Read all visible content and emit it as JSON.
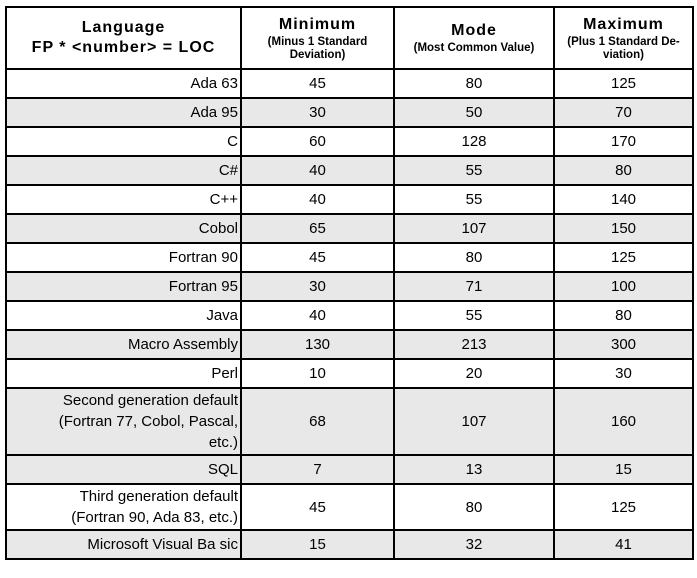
{
  "colors": {
    "border": "#000000",
    "row_shade": "#e8e8e8",
    "background": "#ffffff",
    "text": "#000000"
  },
  "table": {
    "header": {
      "language": {
        "title": "Language",
        "subtitle": "FP * <number> = LOC"
      },
      "minimum": {
        "title": "Minimum",
        "subtitle": [
          "(Minus 1 Standard",
          "Deviation)"
        ]
      },
      "mode": {
        "title": "Mode",
        "subtitle": [
          "(Most Common Value)"
        ]
      },
      "maximum": {
        "title": "Maximum",
        "subtitle": [
          "(Plus 1 Standard De-",
          "viation)"
        ]
      }
    },
    "rows": [
      {
        "language": "Ada 63",
        "minimum": "45",
        "mode": "80",
        "maximum": "125",
        "shaded": false
      },
      {
        "language": "Ada 95",
        "minimum": "30",
        "mode": "50",
        "maximum": "70",
        "shaded": true
      },
      {
        "language": "C",
        "minimum": "60",
        "mode": "128",
        "maximum": "170",
        "shaded": false
      },
      {
        "language": "C#",
        "minimum": "40",
        "mode": "55",
        "maximum": "80",
        "shaded": true
      },
      {
        "language": "C++",
        "minimum": "40",
        "mode": "55",
        "maximum": "140",
        "shaded": false
      },
      {
        "language": "Cobol",
        "minimum": "65",
        "mode": "107",
        "maximum": "150",
        "shaded": true
      },
      {
        "language": "Fortran 90",
        "minimum": "45",
        "mode": "80",
        "maximum": "125",
        "shaded": false
      },
      {
        "language": "Fortran 95",
        "minimum": "30",
        "mode": "71",
        "maximum": "100",
        "shaded": true
      },
      {
        "language": "Java",
        "minimum": "40",
        "mode": "55",
        "maximum": "80",
        "shaded": false
      },
      {
        "language": "Macro Assembly",
        "minimum": "130",
        "mode": "213",
        "maximum": "300",
        "shaded": true
      },
      {
        "language": "Perl",
        "minimum": "10",
        "mode": "20",
        "maximum": "30",
        "shaded": false
      },
      {
        "language": [
          "Second generation default",
          "(Fortran 77, Cobol, Pascal,",
          "etc.)"
        ],
        "minimum": "68",
        "mode": "107",
        "maximum": "160",
        "shaded": true
      },
      {
        "language": "SQL",
        "minimum": "7",
        "mode": "13",
        "maximum": "15",
        "shaded": true
      },
      {
        "language": [
          "Third generation default",
          "(Fortran 90, Ada 83, etc.)"
        ],
        "minimum": "45",
        "mode": "80",
        "maximum": "125",
        "shaded": false
      },
      {
        "language": "Microsoft Visual Ba sic",
        "minimum": "15",
        "mode": "32",
        "maximum": "41",
        "shaded": true
      }
    ]
  }
}
